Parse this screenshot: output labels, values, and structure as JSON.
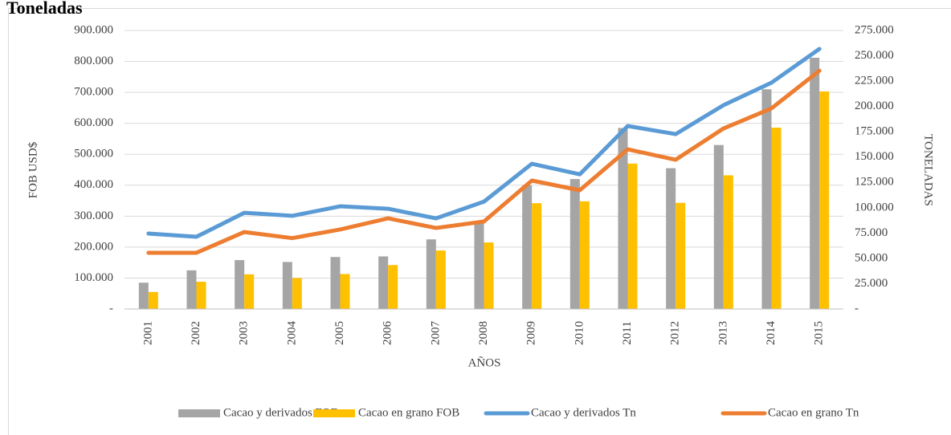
{
  "chart_data": {
    "type": "bar_line",
    "title": "Toneladas",
    "x_label": "AÑOS",
    "y_label": "FOB USD$",
    "y2_label": "TONELADAS",
    "categories": [
      "2001",
      "2002",
      "2003",
      "2004",
      "2005",
      "2006",
      "2007",
      "2008",
      "2009",
      "2010",
      "2011",
      "2012",
      "2013",
      "2014",
      "2015"
    ],
    "series": [
      {
        "name": "Cacao y derivados FOB",
        "color": "#a5a5a5",
        "kind": "bar",
        "axis": "y",
        "values": [
          85000,
          125000,
          158000,
          152000,
          168000,
          170000,
          225000,
          285000,
          400000,
          420000,
          585000,
          455000,
          530000,
          710000,
          812000
        ]
      },
      {
        "name": "Cacao en grano FOB",
        "color": "#ffc000",
        "kind": "bar",
        "axis": "y",
        "values": [
          55000,
          88000,
          112000,
          100000,
          113000,
          142000,
          189000,
          215000,
          342000,
          348000,
          470000,
          343000,
          432000,
          586000,
          703000
        ]
      },
      {
        "name": "Cacao y derivados Tn",
        "color": "#5b9bd5",
        "kind": "line",
        "axis": "y2",
        "values": [
          74500,
          71300,
          95000,
          92000,
          101400,
          99000,
          89500,
          106000,
          143400,
          133000,
          180700,
          172700,
          201300,
          223500,
          256800
        ]
      },
      {
        "name": "Cacao en grano Tn",
        "color": "#ed7d31",
        "kind": "line",
        "axis": "y2",
        "values": [
          55500,
          55500,
          76000,
          70000,
          78500,
          89500,
          80000,
          86400,
          126800,
          117300,
          157700,
          147400,
          178300,
          198100,
          235300
        ]
      }
    ],
    "ylim": [
      0,
      900000
    ],
    "yticks": [
      {
        "value": 0,
        "label": "-"
      },
      {
        "value": 100000,
        "label": "100.000"
      },
      {
        "value": 200000,
        "label": "200.000"
      },
      {
        "value": 300000,
        "label": "300.000"
      },
      {
        "value": 400000,
        "label": "400.000"
      },
      {
        "value": 500000,
        "label": "500.000"
      },
      {
        "value": 600000,
        "label": "600.000"
      },
      {
        "value": 700000,
        "label": "700.000"
      },
      {
        "value": 800000,
        "label": "800.000"
      },
      {
        "value": 900000,
        "label": "900.000"
      }
    ],
    "y2lim": [
      0,
      275000
    ],
    "y2ticks": [
      {
        "value": 0,
        "label": "-"
      },
      {
        "value": 25000,
        "label": "25.000"
      },
      {
        "value": 50000,
        "label": "50.000"
      },
      {
        "value": 75000,
        "label": "75.000"
      },
      {
        "value": 100000,
        "label": "100.000"
      },
      {
        "value": 125000,
        "label": "125.000"
      },
      {
        "value": 150000,
        "label": "150.000"
      },
      {
        "value": 175000,
        "label": "175.000"
      },
      {
        "value": 200000,
        "label": "200.000"
      },
      {
        "value": 225000,
        "label": "225.000"
      },
      {
        "value": 250000,
        "label": "250.000"
      },
      {
        "value": 275000,
        "label": "275.000"
      }
    ],
    "grid": true,
    "legend": "bottom"
  }
}
